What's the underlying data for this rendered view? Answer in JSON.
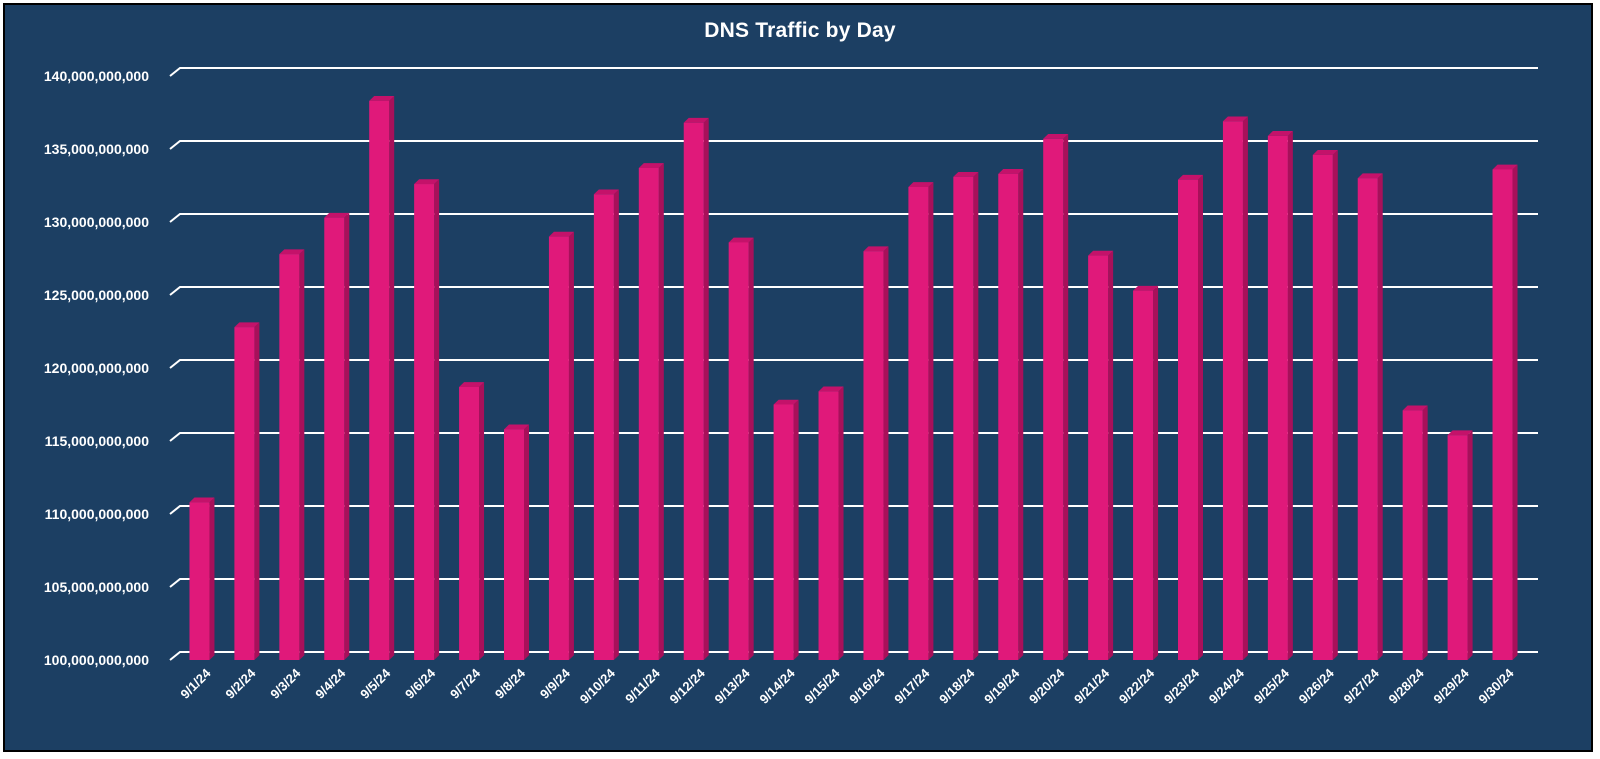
{
  "chart_data": {
    "type": "bar",
    "title": "DNS Traffic by Day",
    "xlabel": "",
    "ylabel": "",
    "ylim": [
      100000000000,
      140000000000
    ],
    "yticks": [
      "100,000,000,000",
      "105,000,000,000",
      "110,000,000,000",
      "115,000,000,000",
      "120,000,000,000",
      "125,000,000,000",
      "130,000,000,000",
      "135,000,000,000",
      "140,000,000,000"
    ],
    "grid": true,
    "legend": "none",
    "categories": [
      "9/1/24",
      "9/2/24",
      "9/3/24",
      "9/4/24",
      "9/5/24",
      "9/6/24",
      "9/7/24",
      "9/8/24",
      "9/9/24",
      "9/10/24",
      "9/11/24",
      "9/12/24",
      "9/13/24",
      "9/14/24",
      "9/15/24",
      "9/16/24",
      "9/17/24",
      "9/18/24",
      "9/19/24",
      "9/20/24",
      "9/21/24",
      "9/22/24",
      "9/23/24",
      "9/24/24",
      "9/25/24",
      "9/26/24",
      "9/27/24",
      "9/28/24",
      "9/29/24",
      "9/30/24"
    ],
    "values": [
      110800000000,
      122800000000,
      127800000000,
      130300000000,
      138300000000,
      132600000000,
      118700000000,
      115800000000,
      129000000000,
      131900000000,
      133700000000,
      136800000000,
      128600000000,
      117500000000,
      118400000000,
      128000000000,
      132400000000,
      133100000000,
      133300000000,
      135700000000,
      127700000000,
      125300000000,
      132900000000,
      136900000000,
      135900000000,
      134600000000,
      133000000000,
      117100000000,
      115400000000,
      133600000000
    ],
    "colors": {
      "background": "#1c3f63",
      "bar_front": "#e0197a",
      "bar_side": "#a8105a",
      "bar_top": "#c4126a",
      "grid": "#ffffff",
      "text": "#ffffff"
    }
  }
}
